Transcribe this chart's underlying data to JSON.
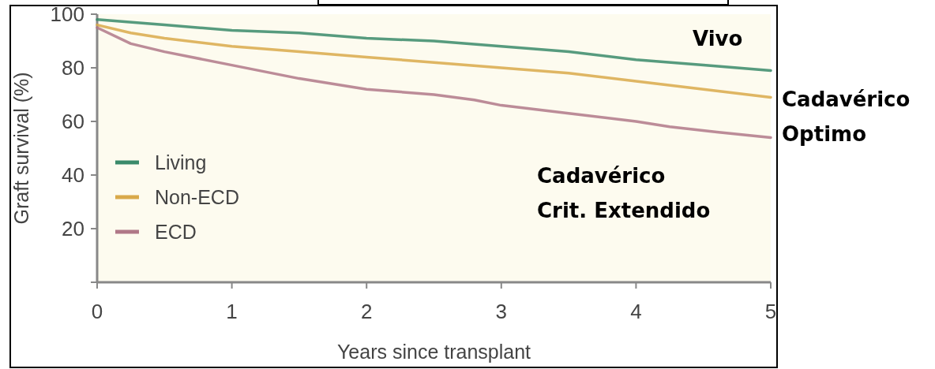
{
  "chart_data": {
    "type": "line",
    "xlabel": "Years since transplant",
    "ylabel": "Graft survival (%)",
    "xlim": [
      0,
      5
    ],
    "xticks": [
      0,
      1,
      2,
      3,
      4,
      5
    ],
    "ylim": [
      0,
      100
    ],
    "yticks": [
      {
        "value": 0,
        "label": null
      },
      20,
      40,
      60,
      80,
      100
    ],
    "grid": false,
    "legend": "bottom left",
    "line_style": "solid",
    "marker": "none",
    "series": [
      {
        "name": "Living",
        "color": "#3a8a6a",
        "x": [
          0,
          0.5,
          1,
          1.5,
          2,
          2.5,
          3,
          3.5,
          4,
          4.5,
          5
        ],
        "values": [
          98,
          96,
          94,
          93,
          91,
          90,
          88,
          86,
          83,
          81,
          79
        ]
      },
      {
        "name": "Non-ECD",
        "color": "#d9a94a",
        "x": [
          0,
          0.25,
          0.5,
          1,
          1.5,
          2,
          2.5,
          3,
          3.5,
          4,
          4.5,
          5
        ],
        "values": [
          96,
          93,
          91,
          88,
          86,
          84,
          82,
          80,
          78,
          75,
          72,
          69
        ]
      },
      {
        "name": "ECD",
        "color": "#b07888",
        "x": [
          0,
          0.25,
          0.5,
          1,
          1.5,
          2,
          2.5,
          2.8,
          3,
          3.5,
          4,
          4.25,
          4.6,
          5
        ],
        "values": [
          95,
          89,
          86,
          81,
          76,
          72,
          70,
          68,
          66,
          63,
          60,
          58,
          56,
          54
        ]
      }
    ],
    "annotations": [
      "Vivo",
      "Cadavérico\nOptimo",
      "Cadavérico\nCrit. Extendido"
    ]
  }
}
